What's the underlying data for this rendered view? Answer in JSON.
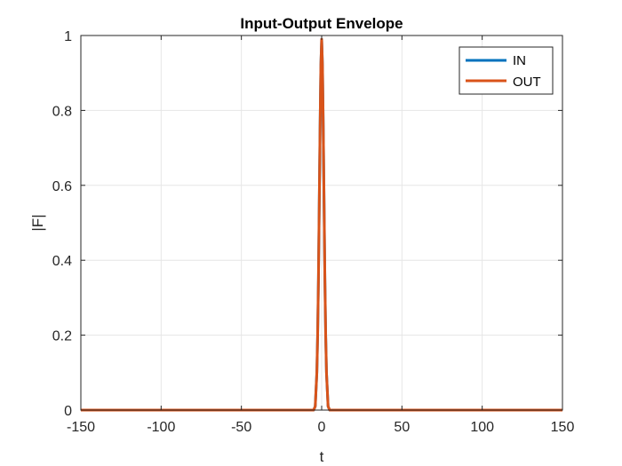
{
  "chart_data": {
    "type": "line",
    "title": "Input-Output Envelope",
    "xlabel": "t",
    "ylabel": "|F|",
    "xlim": [
      -150,
      150
    ],
    "ylim": [
      0,
      1
    ],
    "xticks": [
      -150,
      -100,
      -50,
      0,
      50,
      100,
      150
    ],
    "yticks": [
      0,
      0.2,
      0.4,
      0.6,
      0.8,
      1
    ],
    "xtick_labels": [
      "-150",
      "-100",
      "-50",
      "0",
      "50",
      "100",
      "150"
    ],
    "ytick_labels": [
      "0",
      "0.2",
      "0.4",
      "0.6",
      "0.8",
      "1"
    ],
    "grid": true,
    "legend_position": "top-right",
    "x": [
      -150,
      -100,
      -50,
      -10,
      -5,
      -4,
      -3,
      -2.5,
      -2,
      -1.5,
      -1,
      -0.5,
      0,
      0.5,
      1,
      1.5,
      2,
      2.5,
      3,
      4,
      5,
      10,
      50,
      100,
      150
    ],
    "series": [
      {
        "name": "IN",
        "color": "#0072BD",
        "values": [
          0,
          0,
          0,
          0,
          0,
          0.01,
          0.1,
          0.2,
          0.35,
          0.55,
          0.75,
          0.92,
          0.99,
          0.92,
          0.75,
          0.55,
          0.35,
          0.2,
          0.1,
          0.01,
          0,
          0,
          0,
          0,
          0
        ]
      },
      {
        "name": "OUT",
        "color": "#D95319",
        "values": [
          0,
          0,
          0,
          0,
          0,
          0.01,
          0.1,
          0.2,
          0.35,
          0.55,
          0.75,
          0.92,
          0.99,
          0.92,
          0.75,
          0.55,
          0.35,
          0.2,
          0.1,
          0.01,
          0,
          0,
          0,
          0,
          0
        ]
      }
    ]
  }
}
